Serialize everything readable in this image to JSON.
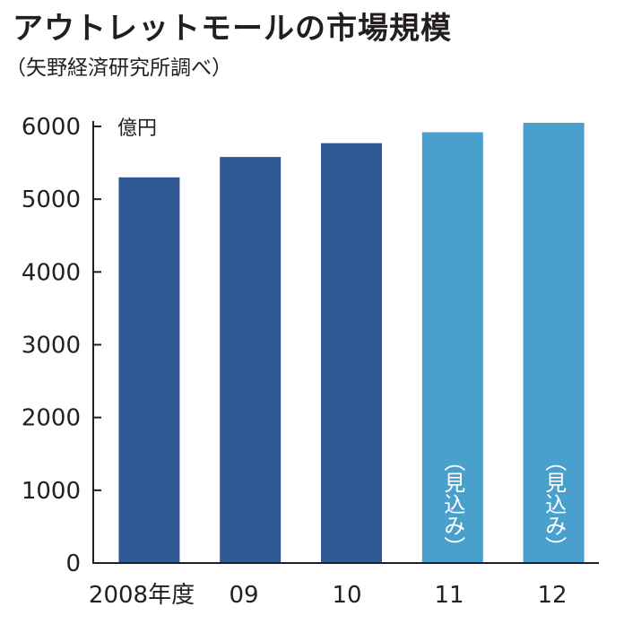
{
  "header": {
    "title": "アウトレットモールの市場規模",
    "source": "（矢野経済研究所調べ）"
  },
  "chart_data": {
    "type": "bar",
    "title": "アウトレットモールの市場規模",
    "unit": "億円",
    "categories": [
      "2008年度",
      "09",
      "10",
      "11",
      "12"
    ],
    "values": [
      5300,
      5580,
      5770,
      5920,
      6050
    ],
    "projected": [
      false,
      false,
      false,
      true,
      true
    ],
    "projection_note": "（見込み）",
    "ylim": [
      0,
      6000
    ],
    "yticks": [
      0,
      1000,
      2000,
      3000,
      4000,
      5000,
      6000
    ],
    "colors": {
      "actual": "#2f5993",
      "projected": "#4aa0cc"
    },
    "grid": false
  }
}
